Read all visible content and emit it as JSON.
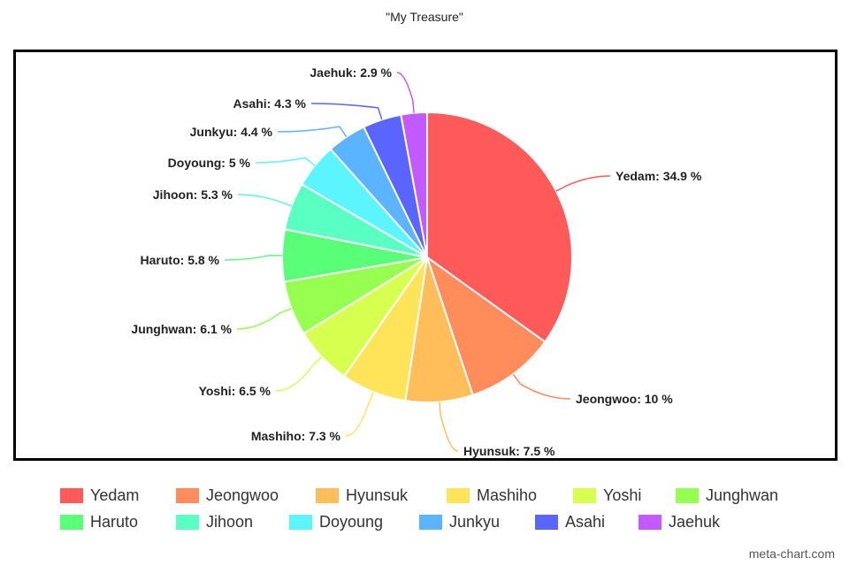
{
  "title": "\"My Treasure\"",
  "watermark": "meta-chart.com",
  "chart_data": {
    "type": "pie",
    "title": "\"My Treasure\"",
    "legend_position": "bottom",
    "slices": [
      {
        "label": "Yedam",
        "value": 34.9,
        "display": "Yedam: 34.9 %",
        "color": "#ff5a5a"
      },
      {
        "label": "Jeongwoo",
        "value": 10,
        "display": "Jeongwoo: 10 %",
        "color": "#ff8c5a"
      },
      {
        "label": "Hyunsuk",
        "value": 7.5,
        "display": "Hyunsuk: 7.5 %",
        "color": "#ffbe5a"
      },
      {
        "label": "Mashiho",
        "value": 7.3,
        "display": "Mashiho: 7.3 %",
        "color": "#ffe45a"
      },
      {
        "label": "Yoshi",
        "value": 6.5,
        "display": "Yoshi: 6.5 %",
        "color": "#d7ff50"
      },
      {
        "label": "Junghwan",
        "value": 6.1,
        "display": "Junghwan: 6.1 %",
        "color": "#96ff50"
      },
      {
        "label": "Haruto",
        "value": 5.8,
        "display": "Haruto: 5.8 %",
        "color": "#5aff78"
      },
      {
        "label": "Jihoon",
        "value": 5.3,
        "display": "Jihoon: 5.3 %",
        "color": "#5affc3"
      },
      {
        "label": "Doyoung",
        "value": 5,
        "display": "Doyoung: 5 %",
        "color": "#5af5ff"
      },
      {
        "label": "Junkyu",
        "value": 4.4,
        "display": "Junkyu: 4.4 %",
        "color": "#5ab4ff"
      },
      {
        "label": "Asahi",
        "value": 4.3,
        "display": "Asahi: 4.3 %",
        "color": "#5a64ff"
      },
      {
        "label": "Jaehuk",
        "value": 2.9,
        "display": "Jaehuk: 2.9 %",
        "color": "#c35aff"
      }
    ]
  }
}
